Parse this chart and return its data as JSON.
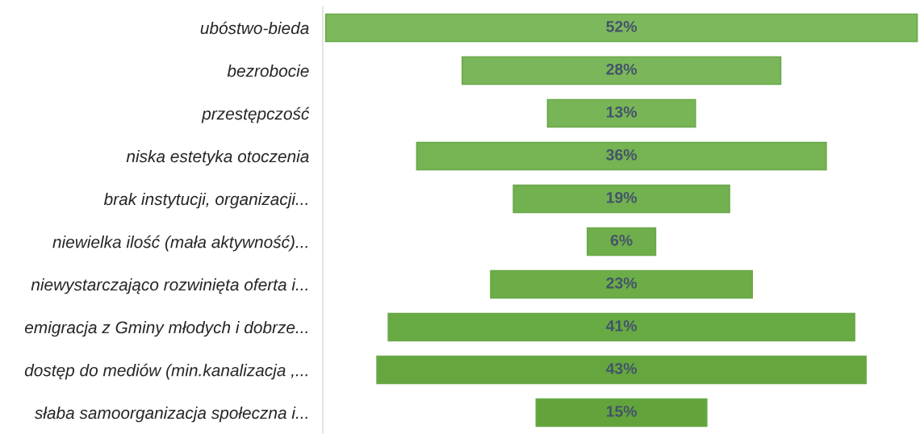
{
  "chart_data": {
    "type": "other",
    "categories": [
      "ubóstwo-bieda",
      "bezrobocie",
      "przestępczość",
      "niska estetyka otoczenia",
      "brak instytucji, organizacji...",
      "niewielka ilość (mała aktywność)...",
      "niewystarczająco rozwinięta oferta i...",
      "emigracja z Gminy młodych i dobrze...",
      "dostęp do mediów (min.kanalizacja ,...",
      "słaba samoorganizacja społeczna i..."
    ],
    "values": [
      52,
      28,
      13,
      36,
      19,
      6,
      23,
      41,
      43,
      15
    ],
    "colors": [
      "#7db85d",
      "#7bb75a",
      "#78b556",
      "#75b353",
      "#72b14f",
      "#6faf4b",
      "#6cad47",
      "#68aa43",
      "#65a73e",
      "#62a43b"
    ],
    "value_labels": [
      "52%",
      "28%",
      "13%",
      "36%",
      "19%",
      "6%",
      "23%",
      "41%",
      "43%",
      "15%"
    ]
  }
}
